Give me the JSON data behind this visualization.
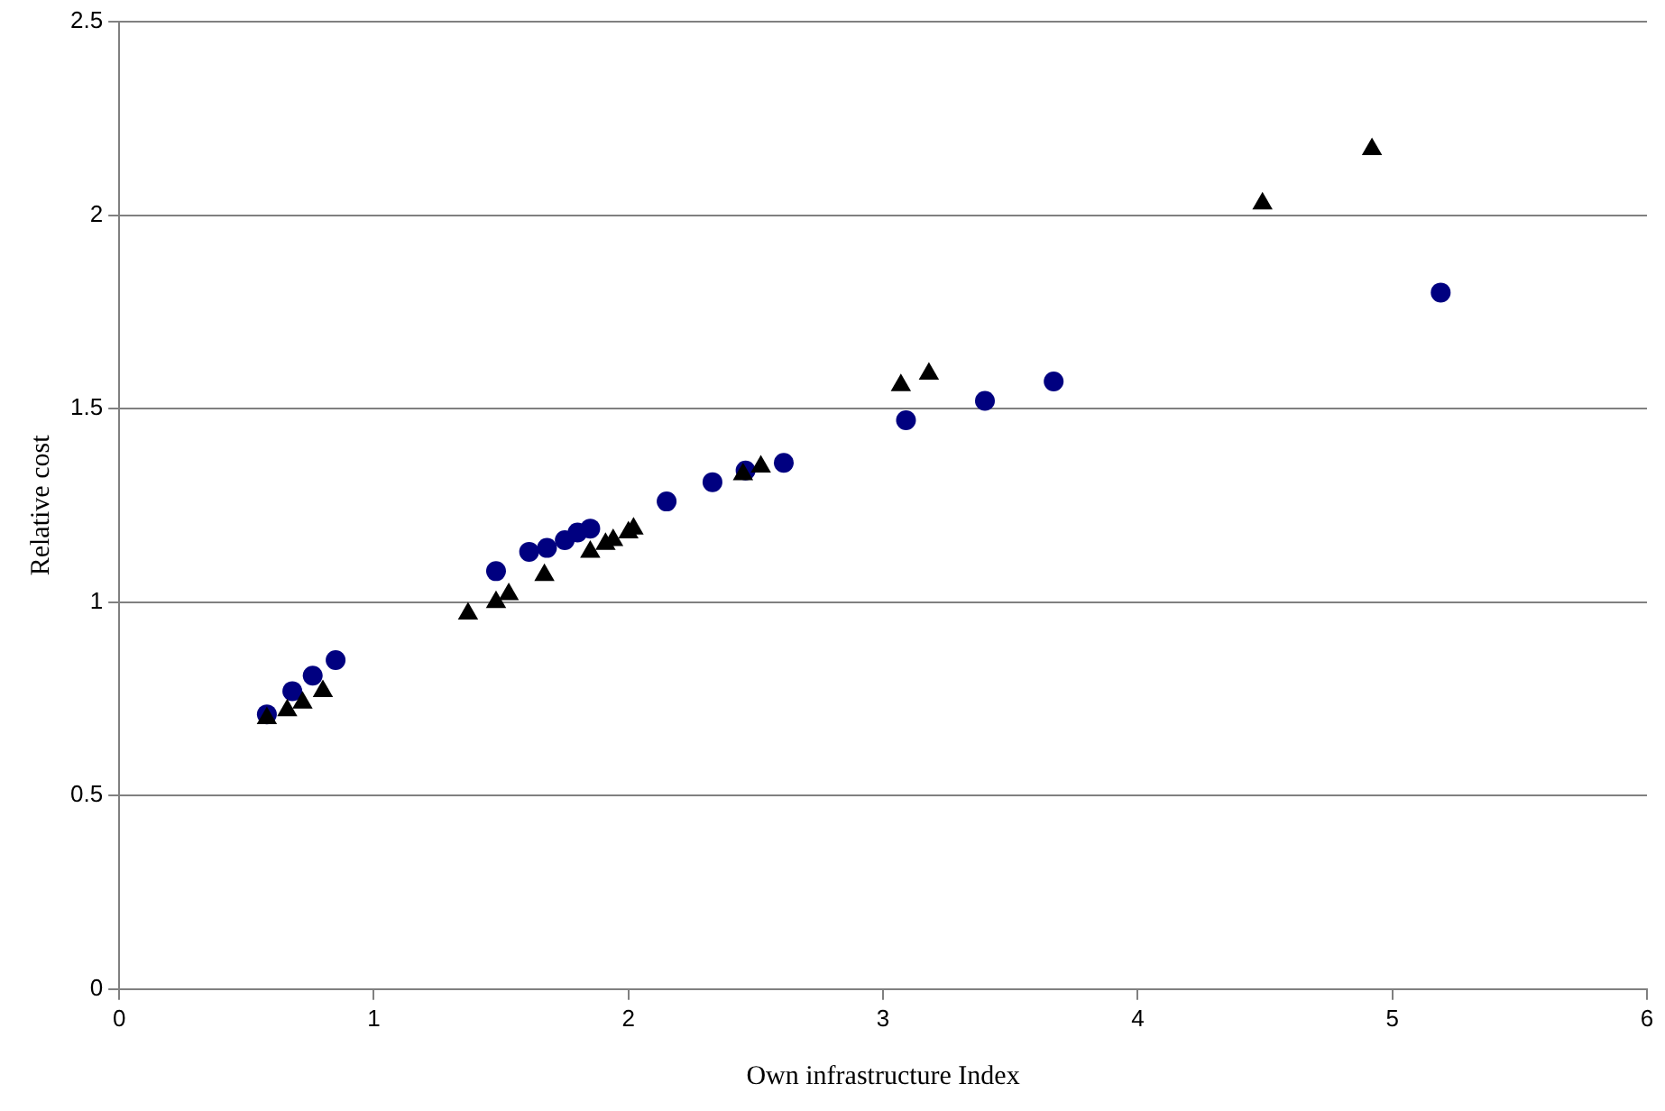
{
  "chart_data": {
    "type": "scatter",
    "xlabel": "Own infrastructure Index",
    "ylabel": "Relative cost",
    "xlim": [
      0,
      6
    ],
    "xticks": [
      0,
      1,
      2,
      3,
      4,
      5,
      6
    ],
    "ylim": [
      0,
      2.5
    ],
    "yticks": [
      0,
      0.5,
      1,
      1.5,
      2,
      2.5
    ],
    "grid": "y",
    "legend": false,
    "series": [
      {
        "color": "#000080",
        "marker": "circle",
        "x": [
          0.58,
          0.68,
          0.76,
          0.85,
          1.48,
          1.61,
          1.68,
          1.75,
          1.8,
          1.85,
          2.15,
          2.33,
          2.46,
          2.61,
          3.09,
          3.4,
          3.67,
          5.19
        ],
        "values": [
          0.71,
          0.77,
          0.81,
          0.85,
          1.08,
          1.13,
          1.14,
          1.16,
          1.18,
          1.19,
          1.26,
          1.31,
          1.34,
          1.36,
          1.47,
          1.52,
          1.57,
          1.8
        ]
      },
      {
        "color": "#000000",
        "marker": "triangle",
        "x": [
          0.58,
          0.66,
          0.72,
          0.8,
          1.37,
          1.48,
          1.53,
          1.67,
          1.85,
          1.91,
          1.94,
          2.0,
          2.02,
          2.45,
          2.52,
          3.07,
          3.18,
          4.49,
          4.92
        ],
        "values": [
          0.7,
          0.72,
          0.74,
          0.77,
          0.97,
          1.0,
          1.02,
          1.07,
          1.13,
          1.15,
          1.16,
          1.18,
          1.19,
          1.33,
          1.35,
          1.56,
          1.59,
          2.03,
          2.17
        ]
      }
    ]
  }
}
